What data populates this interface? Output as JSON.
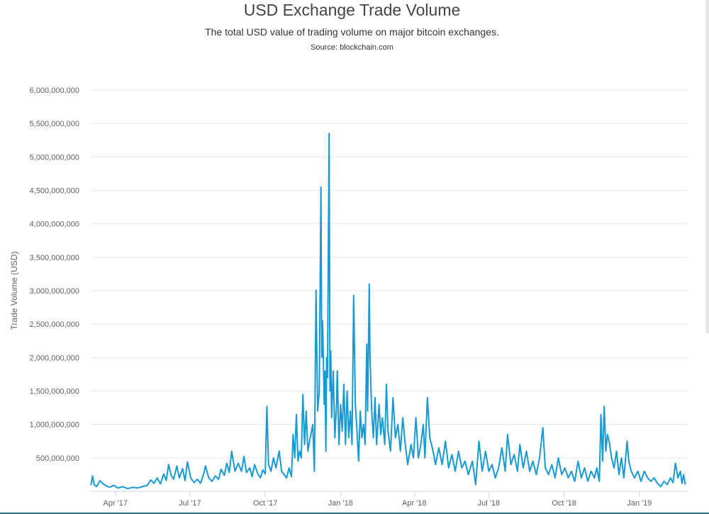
{
  "chart_data": {
    "type": "line",
    "title": "USD Exchange Trade Volume",
    "subtitle": "The total USD value of trading volume on major bitcoin exchanges.",
    "source": "Source: blockchain.com",
    "ylabel": "Trade Volume (USD)",
    "xlabel": "",
    "ylim": [
      0,
      6000000000
    ],
    "xlim": [
      "2017-03-01",
      "2019-03-01"
    ],
    "grid": true,
    "line_color": "#169ad6",
    "y_ticks": [
      {
        "value": 500000000,
        "label": "500,000,000"
      },
      {
        "value": 1000000000,
        "label": "1,000,000,000"
      },
      {
        "value": 1500000000,
        "label": "1,500,000,000"
      },
      {
        "value": 2000000000,
        "label": "2,000,000,000"
      },
      {
        "value": 2500000000,
        "label": "2,500,000,000"
      },
      {
        "value": 3000000000,
        "label": "3,000,000,000"
      },
      {
        "value": 3500000000,
        "label": "3,500,000,000"
      },
      {
        "value": 4000000000,
        "label": "4,000,000,000"
      },
      {
        "value": 4500000000,
        "label": "4,500,000,000"
      },
      {
        "value": 5000000000,
        "label": "5,000,000,000"
      },
      {
        "value": 5500000000,
        "label": "5,500,000,000"
      },
      {
        "value": 6000000000,
        "label": "6,000,000,000"
      }
    ],
    "x_ticks": [
      {
        "date": "2017-04-01",
        "label": "Apr '17"
      },
      {
        "date": "2017-07-01",
        "label": "Jul '17"
      },
      {
        "date": "2017-10-01",
        "label": "Oct '17"
      },
      {
        "date": "2018-01-01",
        "label": "Jan '18"
      },
      {
        "date": "2018-04-01",
        "label": "Apr '18"
      },
      {
        "date": "2018-07-01",
        "label": "Jul '18"
      },
      {
        "date": "2018-10-01",
        "label": "Oct '18"
      },
      {
        "date": "2019-01-01",
        "label": "Jan '19"
      }
    ],
    "series": [
      {
        "points": [
          [
            "2017-03-02",
            90000000
          ],
          [
            "2017-03-04",
            230000000
          ],
          [
            "2017-03-06",
            100000000
          ],
          [
            "2017-03-09",
            70000000
          ],
          [
            "2017-03-13",
            160000000
          ],
          [
            "2017-03-17",
            110000000
          ],
          [
            "2017-03-21",
            80000000
          ],
          [
            "2017-03-25",
            60000000
          ],
          [
            "2017-03-30",
            90000000
          ],
          [
            "2017-04-04",
            50000000
          ],
          [
            "2017-04-10",
            70000000
          ],
          [
            "2017-04-16",
            40000000
          ],
          [
            "2017-04-22",
            60000000
          ],
          [
            "2017-04-28",
            50000000
          ],
          [
            "2017-05-04",
            70000000
          ],
          [
            "2017-05-10",
            90000000
          ],
          [
            "2017-05-14",
            170000000
          ],
          [
            "2017-05-18",
            120000000
          ],
          [
            "2017-05-22",
            200000000
          ],
          [
            "2017-05-26",
            110000000
          ],
          [
            "2017-05-30",
            260000000
          ],
          [
            "2017-06-02",
            160000000
          ],
          [
            "2017-06-05",
            400000000
          ],
          [
            "2017-06-08",
            240000000
          ],
          [
            "2017-06-11",
            180000000
          ],
          [
            "2017-06-15",
            380000000
          ],
          [
            "2017-06-18",
            200000000
          ],
          [
            "2017-06-22",
            340000000
          ],
          [
            "2017-06-25",
            160000000
          ],
          [
            "2017-06-28",
            440000000
          ],
          [
            "2017-07-02",
            200000000
          ],
          [
            "2017-07-06",
            130000000
          ],
          [
            "2017-07-10",
            180000000
          ],
          [
            "2017-07-14",
            120000000
          ],
          [
            "2017-07-18",
            270000000
          ],
          [
            "2017-07-20",
            380000000
          ],
          [
            "2017-07-24",
            200000000
          ],
          [
            "2017-07-28",
            150000000
          ],
          [
            "2017-08-01",
            230000000
          ],
          [
            "2017-08-05",
            180000000
          ],
          [
            "2017-08-08",
            330000000
          ],
          [
            "2017-08-12",
            240000000
          ],
          [
            "2017-08-15",
            420000000
          ],
          [
            "2017-08-18",
            280000000
          ],
          [
            "2017-08-21",
            600000000
          ],
          [
            "2017-08-25",
            300000000
          ],
          [
            "2017-08-29",
            420000000
          ],
          [
            "2017-09-02",
            300000000
          ],
          [
            "2017-09-05",
            520000000
          ],
          [
            "2017-09-08",
            280000000
          ],
          [
            "2017-09-12",
            350000000
          ],
          [
            "2017-09-15",
            220000000
          ],
          [
            "2017-09-18",
            400000000
          ],
          [
            "2017-09-22",
            260000000
          ],
          [
            "2017-09-25",
            200000000
          ],
          [
            "2017-09-28",
            320000000
          ],
          [
            "2017-10-01",
            260000000
          ],
          [
            "2017-10-03",
            1270000000
          ],
          [
            "2017-10-05",
            400000000
          ],
          [
            "2017-10-08",
            300000000
          ],
          [
            "2017-10-11",
            500000000
          ],
          [
            "2017-10-14",
            350000000
          ],
          [
            "2017-10-18",
            600000000
          ],
          [
            "2017-10-21",
            300000000
          ],
          [
            "2017-10-24",
            250000000
          ],
          [
            "2017-10-27",
            200000000
          ],
          [
            "2017-10-30",
            350000000
          ],
          [
            "2017-11-02",
            220000000
          ],
          [
            "2017-11-04",
            850000000
          ],
          [
            "2017-11-06",
            500000000
          ],
          [
            "2017-11-08",
            1150000000
          ],
          [
            "2017-11-10",
            450000000
          ],
          [
            "2017-11-12",
            600000000
          ],
          [
            "2017-11-14",
            500000000
          ],
          [
            "2017-11-16",
            1450000000
          ],
          [
            "2017-11-18",
            700000000
          ],
          [
            "2017-11-20",
            1200000000
          ],
          [
            "2017-11-22",
            600000000
          ],
          [
            "2017-11-25",
            800000000
          ],
          [
            "2017-11-28",
            1000000000
          ],
          [
            "2017-11-30",
            300000000
          ],
          [
            "2017-12-02",
            3010000000
          ],
          [
            "2017-12-04",
            1200000000
          ],
          [
            "2017-12-06",
            1500000000
          ],
          [
            "2017-12-08",
            4550000000
          ],
          [
            "2017-12-09",
            2000000000
          ],
          [
            "2017-12-10",
            2550000000
          ],
          [
            "2017-12-12",
            1300000000
          ],
          [
            "2017-12-13",
            1800000000
          ],
          [
            "2017-12-14",
            600000000
          ],
          [
            "2017-12-15",
            2000000000
          ],
          [
            "2017-12-16",
            1700000000
          ],
          [
            "2017-12-18",
            5350000000
          ],
          [
            "2017-12-19",
            1500000000
          ],
          [
            "2017-12-20",
            2100000000
          ],
          [
            "2017-12-21",
            1100000000
          ],
          [
            "2017-12-23",
            1800000000
          ],
          [
            "2017-12-25",
            800000000
          ],
          [
            "2017-12-27",
            1300000000
          ],
          [
            "2017-12-28",
            1800000000
          ],
          [
            "2017-12-30",
            700000000
          ],
          [
            "2018-01-01",
            1300000000
          ],
          [
            "2018-01-03",
            900000000
          ],
          [
            "2018-01-05",
            1600000000
          ],
          [
            "2018-01-07",
            700000000
          ],
          [
            "2018-01-09",
            1500000000
          ],
          [
            "2018-01-11",
            800000000
          ],
          [
            "2018-01-13",
            1200000000
          ],
          [
            "2018-01-15",
            700000000
          ],
          [
            "2018-01-17",
            2930000000
          ],
          [
            "2018-01-19",
            1300000000
          ],
          [
            "2018-01-21",
            900000000
          ],
          [
            "2018-01-23",
            450000000
          ],
          [
            "2018-01-25",
            1200000000
          ],
          [
            "2018-01-27",
            800000000
          ],
          [
            "2018-01-29",
            1000000000
          ],
          [
            "2018-01-31",
            700000000
          ],
          [
            "2018-02-02",
            2200000000
          ],
          [
            "2018-02-03",
            1200000000
          ],
          [
            "2018-02-05",
            3100000000
          ],
          [
            "2018-02-06",
            2000000000
          ],
          [
            "2018-02-08",
            1200000000
          ],
          [
            "2018-02-10",
            800000000
          ],
          [
            "2018-02-12",
            1400000000
          ],
          [
            "2018-02-14",
            700000000
          ],
          [
            "2018-02-17",
            1300000000
          ],
          [
            "2018-02-19",
            850000000
          ],
          [
            "2018-02-21",
            1100000000
          ],
          [
            "2018-02-24",
            700000000
          ],
          [
            "2018-02-26",
            1600000000
          ],
          [
            "2018-02-28",
            900000000
          ],
          [
            "2018-03-03",
            600000000
          ],
          [
            "2018-03-06",
            1400000000
          ],
          [
            "2018-03-09",
            800000000
          ],
          [
            "2018-03-12",
            1000000000
          ],
          [
            "2018-03-15",
            600000000
          ],
          [
            "2018-03-18",
            1100000000
          ],
          [
            "2018-03-21",
            700000000
          ],
          [
            "2018-03-24",
            400000000
          ],
          [
            "2018-03-28",
            700000000
          ],
          [
            "2018-03-31",
            500000000
          ],
          [
            "2018-04-03",
            1100000000
          ],
          [
            "2018-04-06",
            500000000
          ],
          [
            "2018-04-09",
            700000000
          ],
          [
            "2018-04-12",
            1000000000
          ],
          [
            "2018-04-14",
            500000000
          ],
          [
            "2018-04-17",
            1400000000
          ],
          [
            "2018-04-20",
            800000000
          ],
          [
            "2018-04-24",
            600000000
          ],
          [
            "2018-04-27",
            400000000
          ],
          [
            "2018-05-01",
            650000000
          ],
          [
            "2018-05-05",
            400000000
          ],
          [
            "2018-05-09",
            750000000
          ],
          [
            "2018-05-13",
            350000000
          ],
          [
            "2018-05-17",
            550000000
          ],
          [
            "2018-05-21",
            300000000
          ],
          [
            "2018-05-25",
            600000000
          ],
          [
            "2018-05-29",
            350000000
          ],
          [
            "2018-06-02",
            450000000
          ],
          [
            "2018-06-06",
            250000000
          ],
          [
            "2018-06-11",
            450000000
          ],
          [
            "2018-06-15",
            100000000
          ],
          [
            "2018-06-19",
            750000000
          ],
          [
            "2018-06-23",
            300000000
          ],
          [
            "2018-06-27",
            600000000
          ],
          [
            "2018-07-01",
            300000000
          ],
          [
            "2018-07-05",
            400000000
          ],
          [
            "2018-07-09",
            200000000
          ],
          [
            "2018-07-13",
            350000000
          ],
          [
            "2018-07-17",
            650000000
          ],
          [
            "2018-07-21",
            300000000
          ],
          [
            "2018-07-24",
            850000000
          ],
          [
            "2018-07-28",
            400000000
          ],
          [
            "2018-08-01",
            550000000
          ],
          [
            "2018-08-05",
            300000000
          ],
          [
            "2018-08-08",
            700000000
          ],
          [
            "2018-08-12",
            350000000
          ],
          [
            "2018-08-16",
            600000000
          ],
          [
            "2018-08-20",
            300000000
          ],
          [
            "2018-08-24",
            450000000
          ],
          [
            "2018-08-28",
            250000000
          ],
          [
            "2018-09-01",
            500000000
          ],
          [
            "2018-09-05",
            950000000
          ],
          [
            "2018-09-08",
            350000000
          ],
          [
            "2018-09-12",
            250000000
          ],
          [
            "2018-09-16",
            400000000
          ],
          [
            "2018-09-20",
            200000000
          ],
          [
            "2018-09-24",
            500000000
          ],
          [
            "2018-09-28",
            250000000
          ],
          [
            "2018-10-02",
            350000000
          ],
          [
            "2018-10-06",
            200000000
          ],
          [
            "2018-10-10",
            300000000
          ],
          [
            "2018-10-14",
            150000000
          ],
          [
            "2018-10-18",
            450000000
          ],
          [
            "2018-10-22",
            200000000
          ],
          [
            "2018-10-26",
            350000000
          ],
          [
            "2018-10-30",
            150000000
          ],
          [
            "2018-11-03",
            300000000
          ],
          [
            "2018-11-07",
            200000000
          ],
          [
            "2018-11-10",
            350000000
          ],
          [
            "2018-11-13",
            150000000
          ],
          [
            "2018-11-15",
            1150000000
          ],
          [
            "2018-11-17",
            450000000
          ],
          [
            "2018-11-19",
            1270000000
          ],
          [
            "2018-11-21",
            600000000
          ],
          [
            "2018-11-23",
            850000000
          ],
          [
            "2018-11-25",
            750000000
          ],
          [
            "2018-11-28",
            500000000
          ],
          [
            "2018-12-01",
            350000000
          ],
          [
            "2018-12-04",
            600000000
          ],
          [
            "2018-12-07",
            250000000
          ],
          [
            "2018-12-10",
            500000000
          ],
          [
            "2018-12-13",
            200000000
          ],
          [
            "2018-12-17",
            750000000
          ],
          [
            "2018-12-19",
            450000000
          ],
          [
            "2018-12-22",
            300000000
          ],
          [
            "2018-12-26",
            200000000
          ],
          [
            "2018-12-30",
            300000000
          ],
          [
            "2019-01-03",
            150000000
          ],
          [
            "2019-01-07",
            300000000
          ],
          [
            "2019-01-11",
            200000000
          ],
          [
            "2019-01-15",
            150000000
          ],
          [
            "2019-01-19",
            200000000
          ],
          [
            "2019-01-23",
            120000000
          ],
          [
            "2019-01-27",
            70000000
          ],
          [
            "2019-01-31",
            150000000
          ],
          [
            "2019-02-04",
            100000000
          ],
          [
            "2019-02-08",
            200000000
          ],
          [
            "2019-02-11",
            130000000
          ],
          [
            "2019-02-14",
            420000000
          ],
          [
            "2019-02-17",
            200000000
          ],
          [
            "2019-02-20",
            300000000
          ],
          [
            "2019-02-22",
            120000000
          ],
          [
            "2019-02-24",
            250000000
          ],
          [
            "2019-02-26",
            100000000
          ]
        ]
      }
    ]
  }
}
